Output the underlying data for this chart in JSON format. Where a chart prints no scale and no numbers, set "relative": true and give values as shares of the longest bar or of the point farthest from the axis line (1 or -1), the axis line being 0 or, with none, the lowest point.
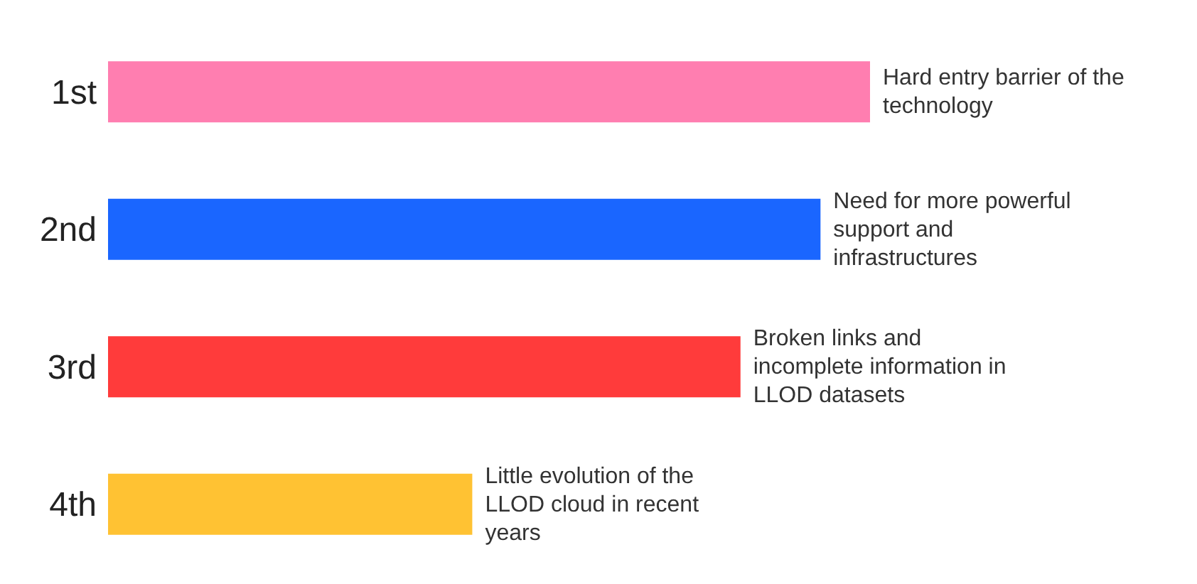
{
  "chart_data": {
    "type": "bar",
    "orientation": "horizontal",
    "relative": true,
    "categories": [
      "1st",
      "2nd",
      "3rd",
      "4th"
    ],
    "values": [
      1,
      0.935,
      0.83,
      0.478
    ],
    "colors": [
      "#ff7eb0",
      "#1a66ff",
      "#ff3b3b",
      "#ffc233"
    ],
    "annotations": [
      {
        "text": "Hard entry barrier of the technology",
        "x": 1,
        "y": "1st"
      },
      {
        "text": "Need for more powerful support and infrastructures",
        "x": 0.935,
        "y": "2nd"
      },
      {
        "text": "Broken links and incomplete information in LLOD datasets",
        "x": 0.83,
        "y": "3rd"
      },
      {
        "text": "Little evolution of the LLOD cloud in recent years",
        "x": 0.478,
        "y": "4th"
      }
    ]
  }
}
